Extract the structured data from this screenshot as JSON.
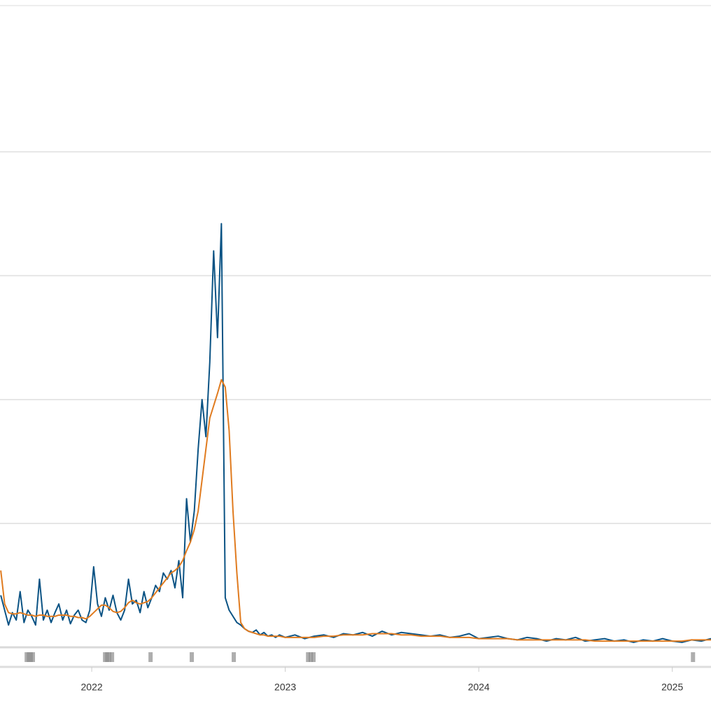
{
  "chart_data": {
    "type": "line",
    "x": [
      2021.53,
      2021.55,
      2021.57,
      2021.59,
      2021.61,
      2021.63,
      2021.65,
      2021.67,
      2021.69,
      2021.71,
      2021.73,
      2021.75,
      2021.77,
      2021.79,
      2021.81,
      2021.83,
      2021.85,
      2021.87,
      2021.89,
      2021.91,
      2021.93,
      2021.95,
      2021.97,
      2021.99,
      2022.01,
      2022.03,
      2022.05,
      2022.07,
      2022.09,
      2022.11,
      2022.13,
      2022.15,
      2022.17,
      2022.19,
      2022.21,
      2022.23,
      2022.25,
      2022.27,
      2022.29,
      2022.31,
      2022.33,
      2022.35,
      2022.37,
      2022.39,
      2022.41,
      2022.43,
      2022.45,
      2022.47,
      2022.49,
      2022.51,
      2022.53,
      2022.55,
      2022.57,
      2022.59,
      2022.61,
      2022.63,
      2022.65,
      2022.67,
      2022.69,
      2022.71,
      2022.73,
      2022.75,
      2022.77,
      2022.79,
      2022.81,
      2022.83,
      2022.85,
      2022.87,
      2022.89,
      2022.91,
      2022.93,
      2022.95,
      2022.97,
      2023,
      2023.05,
      2023.1,
      2023.15,
      2023.2,
      2023.25,
      2023.3,
      2023.35,
      2023.4,
      2023.45,
      2023.5,
      2023.55,
      2023.6,
      2023.65,
      2023.7,
      2023.75,
      2023.8,
      2023.85,
      2023.9,
      2023.95,
      2024,
      2024.05,
      2024.1,
      2024.15,
      2024.2,
      2024.25,
      2024.3,
      2024.35,
      2024.4,
      2024.45,
      2024.5,
      2024.55,
      2024.6,
      2024.65,
      2024.7,
      2024.75,
      2024.8,
      2024.85,
      2024.9,
      2024.95,
      2025,
      2025.05,
      2025.1,
      2025.15,
      2025.2
    ],
    "series": [
      {
        "color": "#0b5384",
        "values": [
          0.42,
          0.3,
          0.18,
          0.28,
          0.22,
          0.45,
          0.2,
          0.3,
          0.25,
          0.18,
          0.55,
          0.22,
          0.3,
          0.2,
          0.28,
          0.35,
          0.22,
          0.3,
          0.19,
          0.26,
          0.3,
          0.22,
          0.2,
          0.3,
          0.65,
          0.35,
          0.25,
          0.4,
          0.3,
          0.42,
          0.28,
          0.22,
          0.3,
          0.55,
          0.35,
          0.38,
          0.28,
          0.45,
          0.32,
          0.4,
          0.5,
          0.45,
          0.6,
          0.55,
          0.62,
          0.48,
          0.7,
          0.4,
          1.2,
          0.85,
          1.1,
          1.6,
          2.0,
          1.7,
          2.3,
          3.2,
          2.5,
          3.42,
          0.4,
          0.3,
          0.25,
          0.2,
          0.18,
          0.15,
          0.13,
          0.12,
          0.14,
          0.1,
          0.12,
          0.09,
          0.1,
          0.08,
          0.1,
          0.08,
          0.1,
          0.07,
          0.09,
          0.1,
          0.08,
          0.11,
          0.1,
          0.12,
          0.09,
          0.13,
          0.1,
          0.12,
          0.11,
          0.1,
          0.09,
          0.1,
          0.08,
          0.09,
          0.11,
          0.07,
          0.08,
          0.09,
          0.07,
          0.06,
          0.08,
          0.07,
          0.05,
          0.07,
          0.06,
          0.08,
          0.05,
          0.06,
          0.07,
          0.05,
          0.06,
          0.04,
          0.06,
          0.05,
          0.07,
          0.05,
          0.04,
          0.06,
          0.05,
          0.07
        ]
      },
      {
        "color": "#e07b1f",
        "values": [
          0.62,
          0.35,
          0.28,
          0.27,
          0.27,
          0.28,
          0.27,
          0.26,
          0.26,
          0.25,
          0.26,
          0.26,
          0.25,
          0.25,
          0.25,
          0.26,
          0.26,
          0.26,
          0.25,
          0.25,
          0.24,
          0.24,
          0.23,
          0.25,
          0.28,
          0.31,
          0.34,
          0.34,
          0.32,
          0.29,
          0.28,
          0.29,
          0.32,
          0.36,
          0.38,
          0.36,
          0.35,
          0.36,
          0.37,
          0.4,
          0.44,
          0.48,
          0.52,
          0.56,
          0.6,
          0.62,
          0.65,
          0.7,
          0.78,
          0.85,
          0.95,
          1.1,
          1.35,
          1.6,
          1.85,
          1.95,
          2.05,
          2.16,
          2.1,
          1.75,
          1.1,
          0.6,
          0.2,
          0.15,
          0.13,
          0.12,
          0.11,
          0.1,
          0.1,
          0.09,
          0.09,
          0.09,
          0.09,
          0.08,
          0.08,
          0.08,
          0.08,
          0.09,
          0.09,
          0.1,
          0.1,
          0.1,
          0.11,
          0.11,
          0.11,
          0.1,
          0.1,
          0.09,
          0.09,
          0.09,
          0.08,
          0.08,
          0.08,
          0.07,
          0.07,
          0.07,
          0.07,
          0.06,
          0.06,
          0.06,
          0.06,
          0.06,
          0.06,
          0.06,
          0.06,
          0.05,
          0.05,
          0.05,
          0.05,
          0.05,
          0.05,
          0.05,
          0.05,
          0.05,
          0.05,
          0.06,
          0.06,
          0.06
        ]
      }
    ],
    "event_x": [
      2021.664,
      2021.675,
      2021.685,
      2021.696,
      2022.069,
      2022.08,
      2022.09,
      2022.105,
      2022.304,
      2022.517,
      2022.734,
      2023.118,
      2023.132,
      2023.146,
      2025.107
    ],
    "event_color": "#8c8c8c",
    "xlim": [
      2021.526,
      2025.2
    ],
    "xticks": [
      2022,
      2023,
      2024,
      2025
    ],
    "ylim": [
      0,
      5.18
    ],
    "yticks": [
      0,
      1,
      2,
      3,
      4
    ],
    "grid": true
  }
}
